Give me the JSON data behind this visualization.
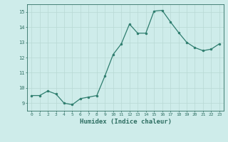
{
  "x": [
    0,
    1,
    2,
    3,
    4,
    5,
    6,
    7,
    8,
    9,
    10,
    11,
    12,
    13,
    14,
    15,
    16,
    17,
    18,
    19,
    20,
    21,
    22,
    23
  ],
  "y": [
    9.5,
    9.5,
    9.8,
    9.6,
    9.0,
    8.9,
    9.3,
    9.4,
    9.5,
    10.8,
    12.2,
    12.9,
    14.2,
    13.6,
    13.6,
    15.05,
    15.1,
    14.35,
    13.65,
    13.0,
    12.65,
    12.45,
    12.55,
    12.9
  ],
  "line_color": "#2e7d6e",
  "marker": "o",
  "marker_size": 2,
  "bg_color": "#ceecea",
  "grid_color": "#b8d8d4",
  "tick_color": "#2e6e62",
  "label_color": "#2e6e62",
  "xlabel": "Humidex (Indice chaleur)",
  "xlabel_fontsize": 6.5,
  "xlim": [
    -0.5,
    23.5
  ],
  "ylim": [
    8.5,
    15.5
  ],
  "yticks": [
    9,
    10,
    11,
    12,
    13,
    14,
    15
  ],
  "xticks": [
    0,
    1,
    2,
    3,
    4,
    5,
    6,
    7,
    8,
    9,
    10,
    11,
    12,
    13,
    14,
    15,
    16,
    17,
    18,
    19,
    20,
    21,
    22,
    23
  ]
}
